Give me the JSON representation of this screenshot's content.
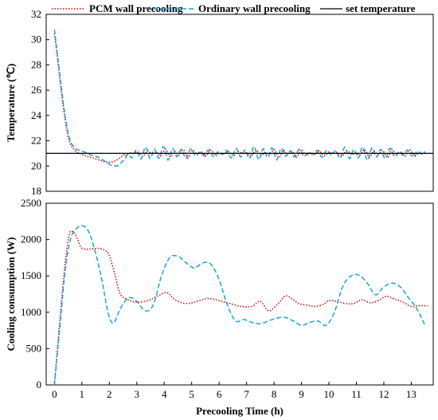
{
  "chart_data": [
    {
      "type": "line",
      "title": "",
      "xlabel": "",
      "ylabel": "Temperature (℃)",
      "xlim": [
        -0.3,
        13.8
      ],
      "ylim": [
        18,
        32
      ],
      "y_ticks": [
        "18",
        "20",
        "22",
        "24",
        "26",
        "28",
        "30",
        "32"
      ],
      "grid": false,
      "legend": {
        "position": "top",
        "entries": [
          {
            "name": "PCM wall precooling",
            "color": "#e00000",
            "style": "dotted"
          },
          {
            "name": "Ordinary wall precooling",
            "color": "#1aa3d9",
            "style": "dashed"
          },
          {
            "name": "set temperature",
            "color": "#000000",
            "style": "solid"
          }
        ]
      },
      "series": [
        {
          "name": "PCM wall precooling",
          "color": "#e00000",
          "x": [
            0,
            0.1,
            0.2,
            0.3,
            0.4,
            0.5,
            0.6,
            0.8,
            1.0,
            1.3,
            1.6,
            1.9,
            2.1,
            2.3,
            2.6,
            3.0,
            3.5,
            4.0,
            4.5,
            5.0,
            5.5,
            6.0,
            6.5,
            7.0,
            7.5,
            8.0,
            8.5,
            9.0,
            9.5,
            10.0,
            10.5,
            11.0,
            11.5,
            12.0,
            12.5,
            13.0,
            13.5
          ],
          "values": [
            30.5,
            28.8,
            26.8,
            25.0,
            23.5,
            22.3,
            21.6,
            21.1,
            20.9,
            20.7,
            20.5,
            20.3,
            20.3,
            20.5,
            21.0,
            21.0,
            21.0,
            21.0,
            21.0,
            21.0,
            21.0,
            21.0,
            21.0,
            21.0,
            21.0,
            21.0,
            21.0,
            21.0,
            21.0,
            21.0,
            21.0,
            21.0,
            21.0,
            21.0,
            21.0,
            21.0,
            21.0
          ],
          "oscillation": 0.25
        },
        {
          "name": "Ordinary wall precooling",
          "color": "#1aa3d9",
          "x": [
            0,
            0.1,
            0.2,
            0.3,
            0.4,
            0.5,
            0.6,
            0.8,
            1.0,
            1.3,
            1.6,
            1.9,
            2.1,
            2.3,
            2.6,
            3.0,
            3.5,
            4.0,
            4.5,
            5.0,
            5.5,
            6.0,
            6.5,
            7.0,
            7.5,
            8.0,
            8.5,
            9.0,
            9.5,
            10.0,
            10.5,
            11.0,
            11.5,
            12.0,
            12.5,
            13.0,
            13.5
          ],
          "values": [
            30.8,
            29.0,
            27.2,
            25.4,
            23.8,
            22.6,
            21.8,
            21.3,
            21.2,
            20.9,
            20.7,
            20.3,
            20.0,
            20.0,
            20.6,
            21.0,
            21.0,
            21.0,
            21.0,
            21.0,
            21.0,
            21.0,
            21.0,
            21.0,
            21.0,
            21.0,
            21.0,
            21.0,
            21.0,
            21.0,
            21.0,
            21.0,
            21.0,
            21.0,
            21.0,
            21.0,
            21.0
          ],
          "oscillation": 0.45
        },
        {
          "name": "set temperature",
          "color": "#000000",
          "x": [
            -0.3,
            13.8
          ],
          "values": [
            21,
            21
          ],
          "oscillation": 0
        }
      ]
    },
    {
      "type": "line",
      "title": "",
      "xlabel": "Precooling Time (h)",
      "ylabel": "Cooling consumption  (W)",
      "xlim": [
        -0.3,
        13.8
      ],
      "ylim": [
        0,
        2500
      ],
      "x_ticks": [
        "0",
        "1",
        "2",
        "3",
        "4",
        "5",
        "6",
        "7",
        "8",
        "9",
        "10",
        "11",
        "12",
        "13"
      ],
      "y_ticks": [
        "0",
        "500",
        "1000",
        "1500",
        "2000",
        "2500"
      ],
      "grid": false,
      "series": [
        {
          "name": "PCM wall precooling",
          "color": "#e00000",
          "x": [
            0,
            0.2,
            0.4,
            0.55,
            0.7,
            0.85,
            1.0,
            1.3,
            1.6,
            1.85,
            2.0,
            2.2,
            2.4,
            2.7,
            3.0,
            3.4,
            3.8,
            4.1,
            4.4,
            4.8,
            5.2,
            5.6,
            6.0,
            6.4,
            6.8,
            7.2,
            7.5,
            7.8,
            8.1,
            8.4,
            8.6,
            8.9,
            9.2,
            9.5,
            9.8,
            10.0,
            10.3,
            10.6,
            10.9,
            11.2,
            11.5,
            11.8,
            12.1,
            12.4,
            12.7,
            13.0,
            13.3,
            13.6
          ],
          "values": [
            0,
            900,
            1700,
            2080,
            2100,
            2000,
            1880,
            1870,
            1880,
            1850,
            1780,
            1520,
            1250,
            1170,
            1140,
            1160,
            1230,
            1270,
            1170,
            1120,
            1150,
            1190,
            1160,
            1120,
            1080,
            1080,
            1150,
            1020,
            1100,
            1220,
            1200,
            1120,
            1100,
            1080,
            1110,
            1160,
            1150,
            1120,
            1120,
            1170,
            1130,
            1160,
            1220,
            1180,
            1140,
            1080,
            1090,
            1090
          ]
        },
        {
          "name": "Ordinary wall precooling",
          "color": "#1aa3d9",
          "x": [
            0,
            0.2,
            0.4,
            0.6,
            0.8,
            1.0,
            1.2,
            1.4,
            1.7,
            1.95,
            2.15,
            2.4,
            2.7,
            3.0,
            3.3,
            3.6,
            3.9,
            4.2,
            4.5,
            4.8,
            5.1,
            5.4,
            5.7,
            6.0,
            6.3,
            6.6,
            6.9,
            7.2,
            7.5,
            7.8,
            8.1,
            8.4,
            8.7,
            9.0,
            9.3,
            9.6,
            9.9,
            10.2,
            10.5,
            10.8,
            11.1,
            11.4,
            11.7,
            12.0,
            12.3,
            12.6,
            12.9,
            13.2,
            13.5
          ],
          "values": [
            0,
            800,
            1600,
            2020,
            2150,
            2190,
            2140,
            1950,
            1500,
            1000,
            850,
            1050,
            1200,
            1150,
            1020,
            1100,
            1500,
            1750,
            1770,
            1680,
            1610,
            1680,
            1660,
            1450,
            1100,
            880,
            900,
            860,
            840,
            880,
            920,
            930,
            880,
            820,
            860,
            880,
            820,
            1000,
            1350,
            1500,
            1510,
            1400,
            1240,
            1350,
            1400,
            1350,
            1200,
            1050,
            820
          ]
        }
      ]
    }
  ]
}
